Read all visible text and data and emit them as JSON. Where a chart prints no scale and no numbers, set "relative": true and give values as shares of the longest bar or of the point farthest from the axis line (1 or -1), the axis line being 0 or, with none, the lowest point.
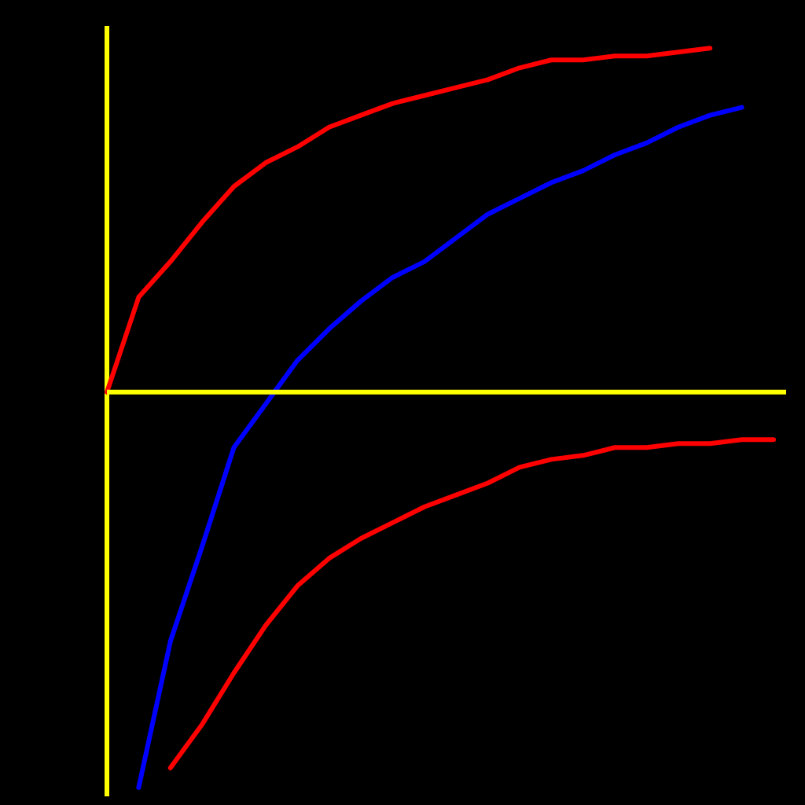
{
  "chart_data": {
    "type": "line",
    "relative": true,
    "grid": false,
    "legend": false,
    "ref_lines": [
      {
        "axis": "y",
        "value": 0,
        "color": "#ffff00"
      }
    ],
    "marker": "none",
    "line_style": "solid",
    "categories": [
      null,
      null,
      null,
      null,
      null,
      null,
      null,
      null,
      null,
      null,
      null,
      null,
      null,
      null,
      null,
      null,
      null,
      null,
      null,
      null,
      null,
      null
    ],
    "series": [
      {
        "color": "#ff0000",
        "values": [
          0,
          0.24,
          0.33,
          0.43,
          0.52,
          0.58,
          0.62,
          0.67,
          0.7,
          0.73,
          0.75,
          0.77,
          0.79,
          0.82,
          0.84,
          0.84,
          0.85,
          0.85,
          0.86,
          0.87,
          null,
          null
        ]
      },
      {
        "color": "#0000ff",
        "values": [
          null,
          -1,
          -0.63,
          -0.39,
          -0.14,
          -0.03,
          0.08,
          0.16,
          0.23,
          0.29,
          0.33,
          0.39,
          0.45,
          0.49,
          0.53,
          0.56,
          0.6,
          0.63,
          0.67,
          0.7,
          0.72,
          null
        ]
      },
      {
        "color": "#ff0000",
        "values": [
          null,
          null,
          -0.95,
          -0.84,
          -0.71,
          -0.59,
          -0.49,
          -0.42,
          -0.37,
          -0.33,
          -0.29,
          -0.26,
          -0.23,
          -0.19,
          -0.17,
          -0.16,
          -0.14,
          -0.14,
          -0.13,
          -0.13,
          -0.12,
          -0.12
        ]
      }
    ]
  }
}
